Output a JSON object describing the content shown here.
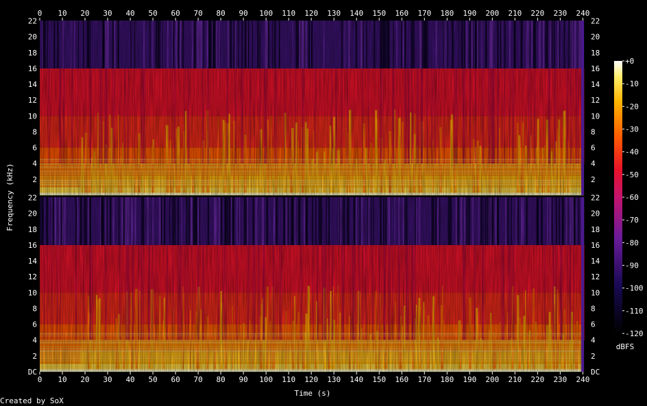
{
  "chart_data": {
    "type": "heatmap",
    "title": "",
    "xlabel": "Time (s)",
    "ylabel": "Frequency (kHz)",
    "credit": "Created by SoX",
    "colorbar_label": "dBFS",
    "channels": 2,
    "xlim": [
      0,
      242
    ],
    "ylim": [
      0,
      22.05
    ],
    "x_ticks": [
      "0",
      "10",
      "20",
      "30",
      "40",
      "50",
      "60",
      "70",
      "80",
      "90",
      "100",
      "110",
      "120",
      "130",
      "140",
      "150",
      "160",
      "170",
      "180",
      "190",
      "200",
      "210",
      "220",
      "230",
      "240"
    ],
    "y_ticks": [
      "DC",
      "2",
      "4",
      "6",
      "8",
      "10",
      "12",
      "14",
      "16",
      "18",
      "20",
      "22"
    ],
    "colorbar_ticks": [
      "+0",
      "-10",
      "-20",
      "-30",
      "-40",
      "-50",
      "-60",
      "-70",
      "-80",
      "-90",
      "-100",
      "-110",
      "-120"
    ],
    "colorbar_range": [
      -120,
      0
    ],
    "lowpass_cutoff_khz": 16,
    "colors": {
      "background": "#000000",
      "low": "#000000",
      "mid_low": "#6a1b9a",
      "mid": "#e8122a",
      "mid_high": "#ff9a00",
      "high": "#ffffff"
    }
  }
}
